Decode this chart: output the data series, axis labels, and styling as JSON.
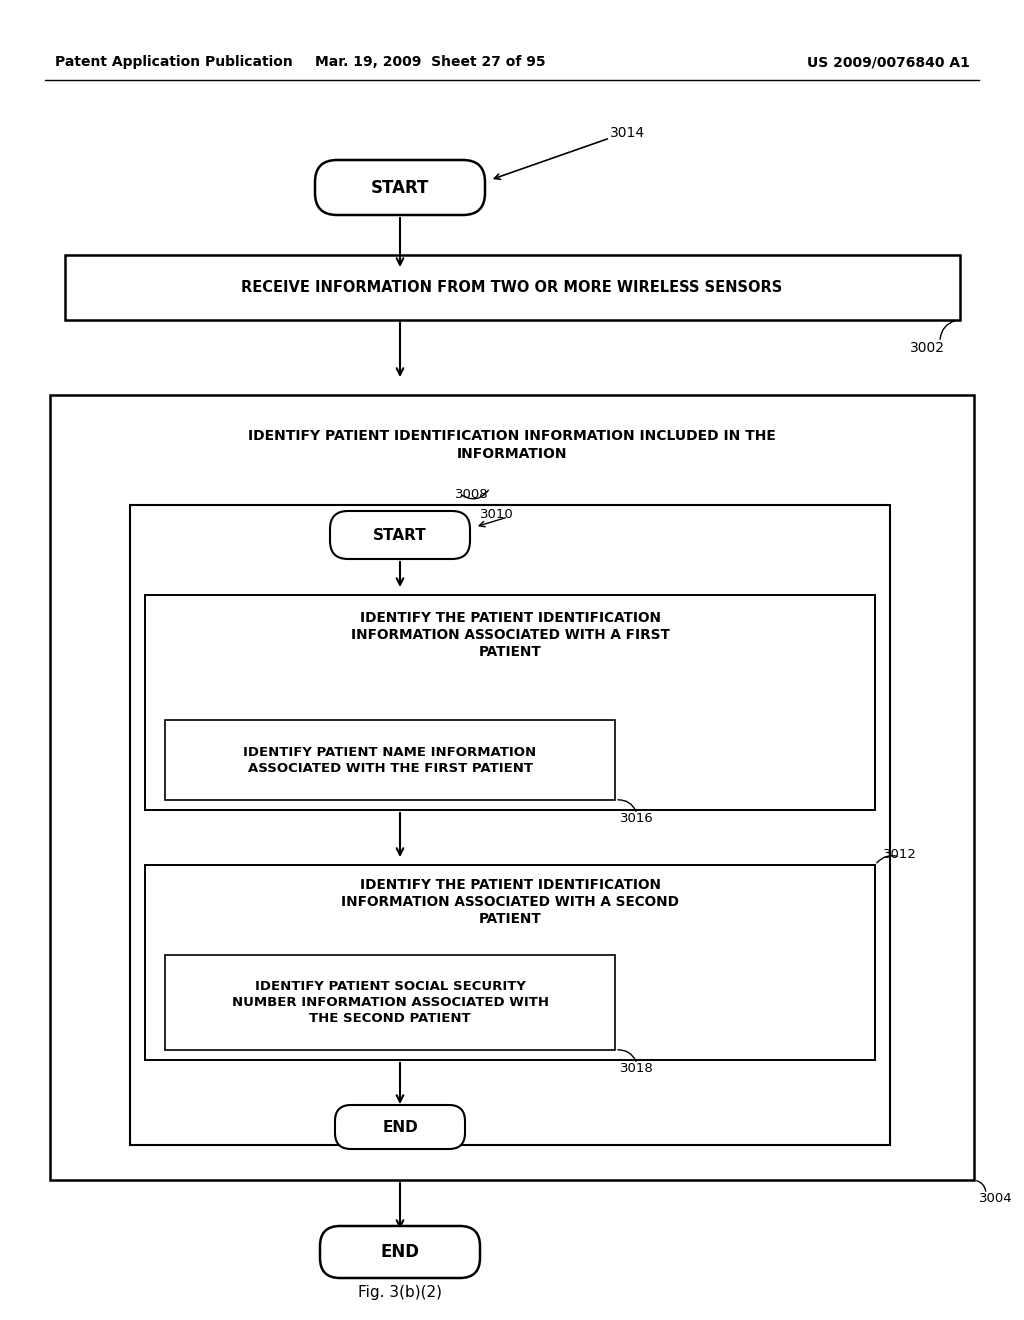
{
  "bg_color": "#ffffff",
  "header_left": "Patent Application Publication",
  "header_mid": "Mar. 19, 2009  Sheet 27 of 95",
  "header_right": "US 2009/0076840 A1",
  "fig_caption": "Fig. 3(b)(2)",
  "start_top_label": "START",
  "start_top_ref": "3014",
  "box1_label": "RECEIVE INFORMATION FROM TWO OR MORE WIRELESS SENSORS",
  "box1_ref": "3002",
  "outer_box_label": "IDENTIFY PATIENT IDENTIFICATION INFORMATION INCLUDED IN THE\nINFORMATION",
  "outer_box_ref": "3008",
  "outer_box_ref2": "3004",
  "inner_start_label": "START",
  "inner_start_ref": "3010",
  "inner_box1_label": "IDENTIFY THE PATIENT IDENTIFICATION\nINFORMATION ASSOCIATED WITH A FIRST\nPATIENT",
  "inner_box1_sub_label": "IDENTIFY PATIENT NAME INFORMATION\nASSOCIATED WITH THE FIRST PATIENT",
  "inner_box1_sub_ref": "3016",
  "inner_box2_label": "IDENTIFY THE PATIENT IDENTIFICATION\nINFORMATION ASSOCIATED WITH A SECOND\nPATIENT",
  "inner_box2_sub_label": "IDENTIFY PATIENT SOCIAL SECURITY\nNUMBER INFORMATION ASSOCIATED WITH\nTHE SECOND PATIENT",
  "inner_box2_sub_ref": "3018",
  "inner_box2_ref": "3012",
  "inner_end_label": "END",
  "end_label": "END"
}
